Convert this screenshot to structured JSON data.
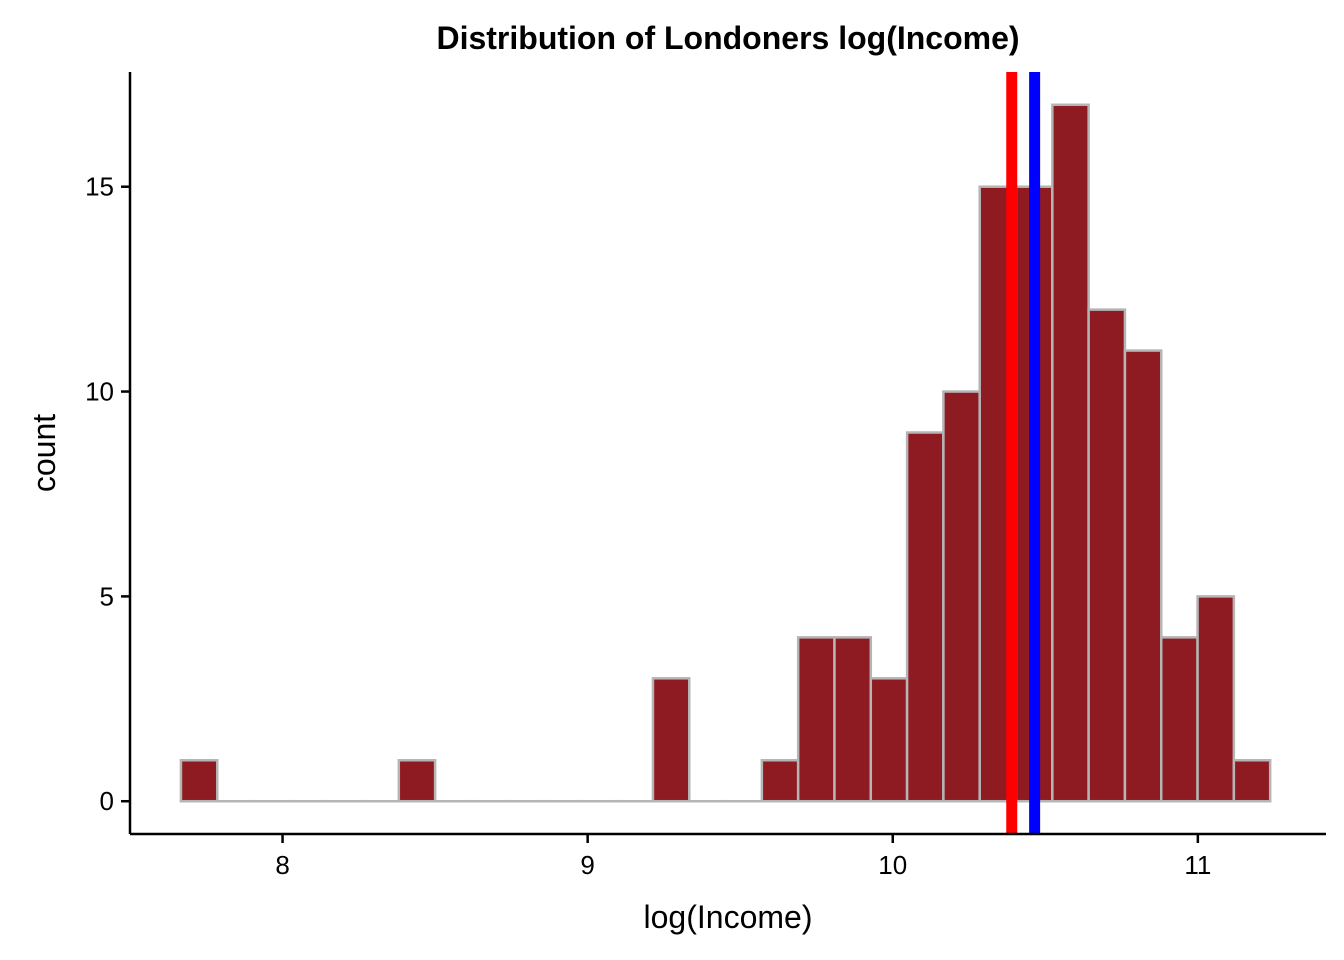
{
  "chart_data": {
    "type": "bar",
    "title": "Distribution of Londoners log(Income)",
    "xlabel": "log(Income)",
    "ylabel": "count",
    "xlim": [
      7.5,
      11.42
    ],
    "ylim": [
      -0.8,
      17.8
    ],
    "x_ticks": [
      8,
      9,
      10,
      11
    ],
    "y_ticks": [
      0,
      5,
      10,
      15
    ],
    "bin_width": 0.119,
    "bins": [
      {
        "x0": 7.667,
        "x1": 7.786,
        "count": 1
      },
      {
        "x0": 7.786,
        "x1": 7.905,
        "count": 0
      },
      {
        "x0": 7.905,
        "x1": 8.024,
        "count": 0
      },
      {
        "x0": 8.024,
        "x1": 8.143,
        "count": 0
      },
      {
        "x0": 8.143,
        "x1": 8.262,
        "count": 0
      },
      {
        "x0": 8.262,
        "x1": 8.381,
        "count": 0
      },
      {
        "x0": 8.381,
        "x1": 8.5,
        "count": 1
      },
      {
        "x0": 8.5,
        "x1": 8.619,
        "count": 0
      },
      {
        "x0": 8.619,
        "x1": 8.738,
        "count": 0
      },
      {
        "x0": 8.738,
        "x1": 8.857,
        "count": 0
      },
      {
        "x0": 8.857,
        "x1": 8.976,
        "count": 0
      },
      {
        "x0": 8.976,
        "x1": 9.095,
        "count": 0
      },
      {
        "x0": 9.095,
        "x1": 9.214,
        "count": 0
      },
      {
        "x0": 9.214,
        "x1": 9.333,
        "count": 3
      },
      {
        "x0": 9.333,
        "x1": 9.452,
        "count": 0
      },
      {
        "x0": 9.452,
        "x1": 9.571,
        "count": 0
      },
      {
        "x0": 9.571,
        "x1": 9.69,
        "count": 1
      },
      {
        "x0": 9.69,
        "x1": 9.809,
        "count": 4
      },
      {
        "x0": 9.809,
        "x1": 9.928,
        "count": 4
      },
      {
        "x0": 9.928,
        "x1": 10.047,
        "count": 3
      },
      {
        "x0": 10.047,
        "x1": 10.166,
        "count": 9
      },
      {
        "x0": 10.166,
        "x1": 10.285,
        "count": 10
      },
      {
        "x0": 10.285,
        "x1": 10.404,
        "count": 15
      },
      {
        "x0": 10.404,
        "x1": 10.523,
        "count": 15
      },
      {
        "x0": 10.523,
        "x1": 10.642,
        "count": 17
      },
      {
        "x0": 10.642,
        "x1": 10.761,
        "count": 12
      },
      {
        "x0": 10.761,
        "x1": 10.88,
        "count": 11
      },
      {
        "x0": 10.88,
        "x1": 10.999,
        "count": 4
      },
      {
        "x0": 10.999,
        "x1": 11.118,
        "count": 5
      },
      {
        "x0": 11.118,
        "x1": 11.237,
        "count": 1
      }
    ],
    "vlines": [
      {
        "x": 10.39,
        "color": "#ff0000"
      },
      {
        "x": 10.465,
        "color": "#0000ff"
      }
    ],
    "bar_fill": "#8e1b22",
    "bar_outline": "#b5b5b5",
    "grid": false,
    "legend": "none"
  }
}
